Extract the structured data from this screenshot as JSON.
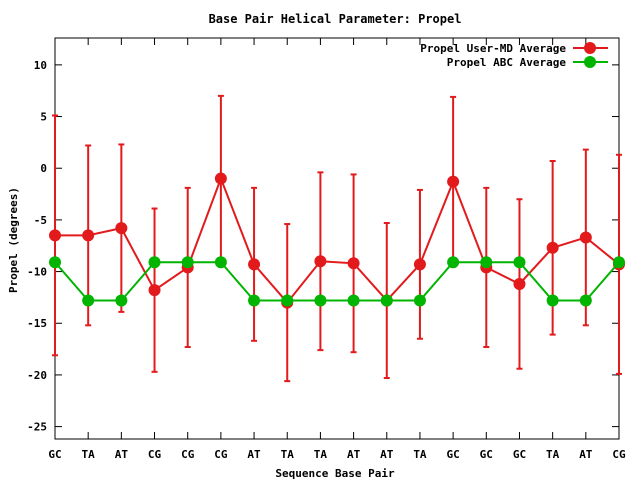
{
  "chart_data": {
    "type": "line",
    "title": "Base Pair Helical Parameter: Propel",
    "xlabel": "Sequence Base Pair",
    "ylabel": "Propel (degrees)",
    "categories": [
      "GC",
      "TA",
      "AT",
      "CG",
      "CG",
      "CG",
      "AT",
      "TA",
      "TA",
      "AT",
      "AT",
      "TA",
      "GC",
      "GC",
      "GC",
      "TA",
      "AT",
      "CG"
    ],
    "ylim": [
      -26.2,
      12.6
    ],
    "yticks": [
      10,
      5,
      0,
      -5,
      -10,
      -15,
      -20,
      -25
    ],
    "ytick_labels": [
      "10",
      "5",
      "0",
      "-5",
      "-10",
      "-15",
      "-20",
      "-25"
    ],
    "grid": false,
    "legend_position": "top-right",
    "series": [
      {
        "name": "Propel User-MD Average",
        "color": "#e31a1c",
        "values": [
          -6.5,
          -6.5,
          -5.8,
          -11.8,
          -9.6,
          -1.0,
          -9.3,
          -13.0,
          -9.0,
          -9.2,
          -12.8,
          -9.3,
          -1.3,
          -9.6,
          -11.2,
          -7.7,
          -6.7,
          -9.3
        ],
        "error": [
          11.6,
          8.7,
          8.1,
          7.9,
          7.7,
          8.0,
          7.4,
          7.6,
          8.6,
          8.6,
          7.5,
          7.2,
          8.2,
          7.7,
          8.2,
          8.4,
          8.5,
          10.6
        ]
      },
      {
        "name": "Propel ABC Average",
        "color": "#00b400",
        "values": [
          -9.1,
          -12.8,
          -12.8,
          -9.1,
          -9.1,
          -9.1,
          -12.8,
          -12.8,
          -12.8,
          -12.8,
          -12.8,
          -12.8,
          -9.1,
          -9.1,
          -9.1,
          -12.8,
          -12.8,
          -9.1
        ]
      }
    ]
  }
}
